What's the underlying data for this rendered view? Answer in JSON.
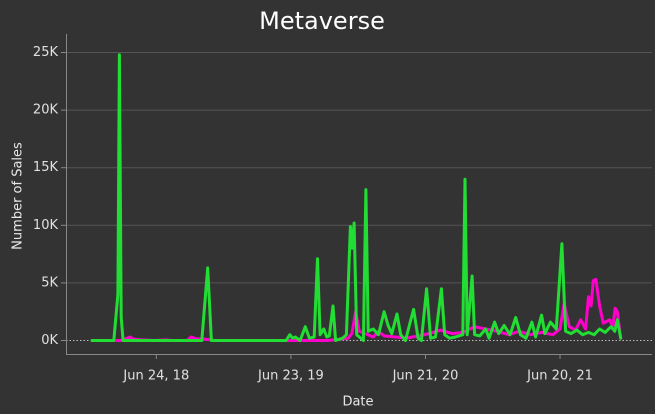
{
  "chart_data": {
    "type": "line",
    "title": "Metaverse",
    "xlabel": "Date",
    "ylabel": "Number of Sales",
    "ylim": [
      0,
      26000
    ],
    "y_ticks": [
      {
        "value": 0,
        "label": "0K"
      },
      {
        "value": 5000,
        "label": "5K"
      },
      {
        "value": 10000,
        "label": "10K"
      },
      {
        "value": 15000,
        "label": "15K"
      },
      {
        "value": 20000,
        "label": "20K"
      },
      {
        "value": 25000,
        "label": "25K"
      }
    ],
    "xlim": [
      "2018-01-01",
      "2021-12-10"
    ],
    "x_ticks": [
      {
        "value": "2018-06-24",
        "label": "Jun 24, 18"
      },
      {
        "value": "2019-06-23",
        "label": "Jun 23, 19"
      },
      {
        "value": "2020-06-21",
        "label": "Jun 21, 20"
      },
      {
        "value": "2021-06-20",
        "label": "Jun 20, 21"
      }
    ],
    "grid": true,
    "zero_line": "dotted",
    "series": [
      {
        "color": "#ff00cc",
        "points": [
          [
            "2018-01-01",
            0
          ],
          [
            "2018-03-20",
            0
          ],
          [
            "2018-04-14",
            300
          ],
          [
            "2018-04-24",
            100
          ],
          [
            "2018-05-15",
            50
          ],
          [
            "2018-06-20",
            0
          ],
          [
            "2018-07-20",
            50
          ],
          [
            "2018-08-05",
            0
          ],
          [
            "2018-09-15",
            0
          ],
          [
            "2018-09-26",
            300
          ],
          [
            "2018-10-10",
            150
          ],
          [
            "2018-11-05",
            100
          ],
          [
            "2018-12-01",
            0
          ],
          [
            "2019-02-01",
            0
          ],
          [
            "2019-04-01",
            0
          ],
          [
            "2019-06-01",
            0
          ],
          [
            "2019-08-01",
            0
          ],
          [
            "2019-10-01",
            0
          ],
          [
            "2019-11-25",
            200
          ],
          [
            "2019-12-05",
            600
          ],
          [
            "2019-12-15",
            2500
          ],
          [
            "2019-12-25",
            800
          ],
          [
            "2020-01-10",
            600
          ],
          [
            "2020-02-01",
            300
          ],
          [
            "2020-02-15",
            800
          ],
          [
            "2020-03-01",
            400
          ],
          [
            "2020-04-01",
            300
          ],
          [
            "2020-05-01",
            200
          ],
          [
            "2020-06-01",
            400
          ],
          [
            "2020-07-01",
            600
          ],
          [
            "2020-08-01",
            900
          ],
          [
            "2020-09-01",
            600
          ],
          [
            "2020-10-01",
            700
          ],
          [
            "2020-11-01",
            1200
          ],
          [
            "2020-12-01",
            1000
          ],
          [
            "2021-01-01",
            800
          ],
          [
            "2021-02-01",
            500
          ],
          [
            "2021-03-01",
            800
          ],
          [
            "2021-04-01",
            500
          ],
          [
            "2021-05-01",
            700
          ],
          [
            "2021-06-01",
            500
          ],
          [
            "2021-06-20",
            1000
          ],
          [
            "2021-07-01",
            3200
          ],
          [
            "2021-07-15",
            1200
          ],
          [
            "2021-08-01",
            900
          ],
          [
            "2021-08-15",
            1800
          ],
          [
            "2021-08-28",
            1000
          ],
          [
            "2021-09-05",
            3800
          ],
          [
            "2021-09-12",
            3000
          ],
          [
            "2021-09-18",
            5200
          ],
          [
            "2021-09-25",
            5300
          ],
          [
            "2021-10-05",
            3000
          ],
          [
            "2021-10-15",
            1500
          ],
          [
            "2021-11-01",
            1800
          ],
          [
            "2021-11-10",
            1200
          ],
          [
            "2021-11-16",
            2800
          ],
          [
            "2021-11-22",
            2500
          ],
          [
            "2021-12-01",
            200
          ]
        ]
      },
      {
        "color": "#22dd33",
        "points": [
          [
            "2018-01-01",
            0
          ],
          [
            "2018-02-15",
            0
          ],
          [
            "2018-03-01",
            0
          ],
          [
            "2018-03-12",
            4000
          ],
          [
            "2018-03-16",
            24800
          ],
          [
            "2018-03-21",
            2000
          ],
          [
            "2018-03-26",
            0
          ],
          [
            "2018-05-01",
            0
          ],
          [
            "2018-07-01",
            0
          ],
          [
            "2018-09-01",
            0
          ],
          [
            "2018-10-25",
            0
          ],
          [
            "2018-11-10",
            6300
          ],
          [
            "2018-11-20",
            0
          ],
          [
            "2019-01-01",
            0
          ],
          [
            "2019-03-01",
            0
          ],
          [
            "2019-05-01",
            0
          ],
          [
            "2019-06-10",
            0
          ],
          [
            "2019-06-20",
            500
          ],
          [
            "2019-06-28",
            200
          ],
          [
            "2019-07-05",
            300
          ],
          [
            "2019-07-18",
            0
          ],
          [
            "2019-08-01",
            1200
          ],
          [
            "2019-08-12",
            200
          ],
          [
            "2019-08-25",
            300
          ],
          [
            "2019-09-03",
            7100
          ],
          [
            "2019-09-10",
            500
          ],
          [
            "2019-09-20",
            1000
          ],
          [
            "2019-09-28",
            300
          ],
          [
            "2019-10-05",
            400
          ],
          [
            "2019-10-15",
            3000
          ],
          [
            "2019-10-22",
            0
          ],
          [
            "2019-11-10",
            200
          ],
          [
            "2019-11-20",
            500
          ],
          [
            "2019-12-01",
            9900
          ],
          [
            "2019-12-06",
            8000
          ],
          [
            "2019-12-11",
            10200
          ],
          [
            "2019-12-18",
            500
          ],
          [
            "2020-01-05",
            0
          ],
          [
            "2020-01-12",
            13100
          ],
          [
            "2020-01-18",
            800
          ],
          [
            "2020-02-01",
            1000
          ],
          [
            "2020-02-15",
            500
          ],
          [
            "2020-03-01",
            2500
          ],
          [
            "2020-03-12",
            1300
          ],
          [
            "2020-03-22",
            600
          ],
          [
            "2020-04-05",
            2300
          ],
          [
            "2020-04-15",
            500
          ],
          [
            "2020-04-28",
            0
          ],
          [
            "2020-05-10",
            1500
          ],
          [
            "2020-05-20",
            2700
          ],
          [
            "2020-06-01",
            200
          ],
          [
            "2020-06-10",
            0
          ],
          [
            "2020-06-24",
            4500
          ],
          [
            "2020-07-05",
            200
          ],
          [
            "2020-07-18",
            300
          ],
          [
            "2020-08-03",
            4500
          ],
          [
            "2020-08-12",
            500
          ],
          [
            "2020-08-25",
            200
          ],
          [
            "2020-09-10",
            300
          ],
          [
            "2020-09-30",
            500
          ],
          [
            "2020-10-06",
            14000
          ],
          [
            "2020-10-12",
            500
          ],
          [
            "2020-10-25",
            5600
          ],
          [
            "2020-11-01",
            500
          ],
          [
            "2020-11-15",
            400
          ],
          [
            "2020-12-01",
            1000
          ],
          [
            "2020-12-10",
            200
          ],
          [
            "2020-12-25",
            1600
          ],
          [
            "2021-01-05",
            600
          ],
          [
            "2021-01-20",
            1300
          ],
          [
            "2021-02-05",
            500
          ],
          [
            "2021-02-20",
            2000
          ],
          [
            "2021-03-05",
            500
          ],
          [
            "2021-03-20",
            200
          ],
          [
            "2021-04-05",
            1600
          ],
          [
            "2021-04-15",
            300
          ],
          [
            "2021-05-01",
            2200
          ],
          [
            "2021-05-10",
            600
          ],
          [
            "2021-05-25",
            1600
          ],
          [
            "2021-06-10",
            1000
          ],
          [
            "2021-06-25",
            8400
          ],
          [
            "2021-07-05",
            800
          ],
          [
            "2021-07-20",
            600
          ],
          [
            "2021-08-05",
            900
          ],
          [
            "2021-08-20",
            500
          ],
          [
            "2021-09-05",
            700
          ],
          [
            "2021-09-20",
            500
          ],
          [
            "2021-10-05",
            1000
          ],
          [
            "2021-10-20",
            700
          ],
          [
            "2021-11-05",
            1200
          ],
          [
            "2021-11-15",
            800
          ],
          [
            "2021-11-22",
            1800
          ],
          [
            "2021-12-01",
            200
          ]
        ]
      }
    ]
  }
}
